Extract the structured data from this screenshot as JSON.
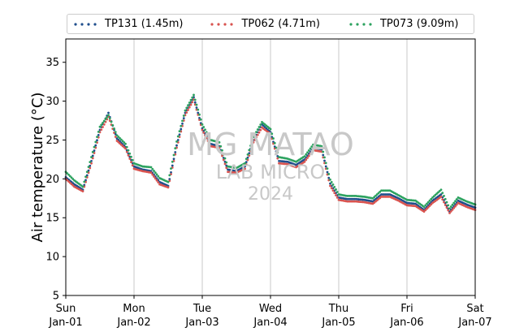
{
  "chart_data": {
    "type": "scatter",
    "ylabel": "Air temperature (°C)",
    "ylim": [
      5,
      38
    ],
    "yticks": [
      5,
      10,
      15,
      20,
      25,
      30,
      35
    ],
    "xlim": [
      "2024-01-01T00:00",
      "2024-01-07T00:00"
    ],
    "xticks": [
      {
        "day": "Sun",
        "date": "Jan-01"
      },
      {
        "day": "Mon",
        "date": "Jan-02"
      },
      {
        "day": "Tue",
        "date": "Jan-03"
      },
      {
        "day": "Wed",
        "date": "Jan-04"
      },
      {
        "day": "Thu",
        "date": "Jan-05"
      },
      {
        "day": "Fri",
        "date": "Jan-06"
      },
      {
        "day": "Sat",
        "date": "Jan-07"
      }
    ],
    "x_grid": true,
    "y_grid": false,
    "legend_position": "top",
    "x_times": [
      "Jan-01 00:00",
      "Jan-01 03:00",
      "Jan-01 06:00",
      "Jan-01 09:00",
      "Jan-01 12:00",
      "Jan-01 15:00",
      "Jan-01 18:00",
      "Jan-01 21:00",
      "Jan-02 00:00",
      "Jan-02 03:00",
      "Jan-02 06:00",
      "Jan-02 09:00",
      "Jan-02 12:00",
      "Jan-02 15:00",
      "Jan-02 18:00",
      "Jan-02 21:00",
      "Jan-03 00:00",
      "Jan-03 03:00",
      "Jan-03 06:00",
      "Jan-03 09:00",
      "Jan-03 12:00",
      "Jan-03 15:00",
      "Jan-03 18:00",
      "Jan-03 21:00",
      "Jan-04 00:00",
      "Jan-04 03:00",
      "Jan-04 06:00",
      "Jan-04 09:00",
      "Jan-04 12:00",
      "Jan-04 15:00",
      "Jan-04 18:00",
      "Jan-04 21:00",
      "Jan-05 00:00",
      "Jan-05 03:00",
      "Jan-05 06:00",
      "Jan-05 09:00",
      "Jan-05 12:00",
      "Jan-05 15:00",
      "Jan-05 18:00",
      "Jan-05 21:00",
      "Jan-06 00:00",
      "Jan-06 03:00",
      "Jan-06 06:00",
      "Jan-06 09:00",
      "Jan-06 12:00",
      "Jan-06 15:00",
      "Jan-06 18:00",
      "Jan-06 21:00",
      "Jan-07 00:00"
    ],
    "series": [
      {
        "name": "TP131 (1.45m)",
        "color": "#1f4e8c",
        "values": [
          20.2,
          19.3,
          18.6,
          22.3,
          26.3,
          28.5,
          25.2,
          24.1,
          21.6,
          21.2,
          21.0,
          19.6,
          19.1,
          24.3,
          28.5,
          30.5,
          26.5,
          24.5,
          24.2,
          21.2,
          21.0,
          21.6,
          25.0,
          27.0,
          26.0,
          22.3,
          22.2,
          21.8,
          22.5,
          24.0,
          23.8,
          19.4,
          17.6,
          17.4,
          17.4,
          17.3,
          17.1,
          18.0,
          18.0,
          17.5,
          16.9,
          16.8,
          16.0,
          17.2,
          18.0,
          15.8,
          17.2,
          16.7,
          16.3
        ]
      },
      {
        "name": "TP062 (4.71m)",
        "color": "#d9534f",
        "values": [
          20.0,
          19.0,
          18.4,
          22.0,
          26.0,
          28.0,
          24.9,
          23.9,
          21.3,
          21.0,
          20.8,
          19.3,
          18.9,
          24.0,
          28.2,
          30.2,
          26.3,
          24.2,
          24.0,
          20.9,
          20.8,
          21.3,
          24.7,
          26.6,
          25.8,
          22.0,
          21.9,
          21.5,
          22.2,
          23.7,
          23.5,
          19.1,
          17.3,
          17.1,
          17.1,
          17.0,
          16.8,
          17.7,
          17.7,
          17.2,
          16.6,
          16.5,
          15.8,
          16.9,
          17.7,
          15.6,
          16.9,
          16.4,
          16.0
        ]
      },
      {
        "name": "TP073 (9.09m)",
        "color": "#2ca25f",
        "values": [
          20.9,
          19.8,
          19.0,
          22.8,
          26.7,
          28.2,
          25.6,
          24.5,
          22.0,
          21.6,
          21.5,
          20.1,
          19.6,
          24.8,
          28.8,
          30.8,
          27.0,
          25.0,
          24.7,
          21.6,
          21.4,
          22.0,
          25.4,
          27.3,
          26.4,
          22.8,
          22.6,
          22.2,
          22.9,
          24.4,
          24.2,
          19.9,
          18.0,
          17.8,
          17.8,
          17.7,
          17.5,
          18.5,
          18.5,
          17.9,
          17.3,
          17.2,
          16.4,
          17.6,
          18.6,
          16.2,
          17.6,
          17.1,
          16.7
        ]
      }
    ]
  },
  "watermark": {
    "line1": "MG MATAO",
    "line2": "LAB MICRO",
    "line3": "2024"
  }
}
